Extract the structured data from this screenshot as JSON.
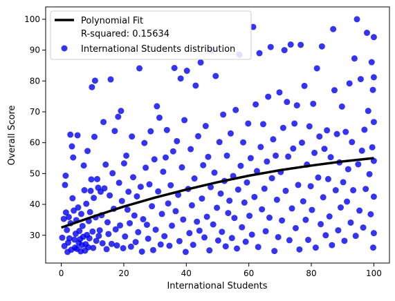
{
  "chart_data": {
    "type": "scatter",
    "xlabel": "International Students",
    "ylabel": "Overall Score",
    "xlim": [
      -5,
      105
    ],
    "ylim": [
      21,
      104
    ],
    "xticks": [
      0,
      20,
      40,
      60,
      80,
      100
    ],
    "yticks": [
      30,
      40,
      50,
      60,
      70,
      80,
      90,
      100
    ],
    "grid": false,
    "legend_position": "top-left",
    "legend": {
      "fit_label": "Polynomial Fit",
      "r2_label": "R-squared: 0.15634",
      "scatter_label": "International Students distribution"
    },
    "colors": {
      "scatter": "#0000ee",
      "fit": "#000000"
    },
    "fit": {
      "name": "Polynomial Fit",
      "x": [
        0,
        10,
        20,
        30,
        40,
        50,
        60,
        70,
        80,
        90,
        100
      ],
      "y": [
        32.5,
        36.0,
        39.3,
        42.2,
        44.8,
        47.2,
        49.3,
        51.1,
        52.6,
        53.9,
        55.0
      ]
    },
    "series": [
      {
        "name": "International Students distribution",
        "points": [
          [
            0.3,
            29.2
          ],
          [
            0.8,
            35.3
          ],
          [
            1.0,
            26.5
          ],
          [
            1.2,
            46.3
          ],
          [
            1.4,
            49.3
          ],
          [
            1.5,
            37.4
          ],
          [
            1.8,
            31.7
          ],
          [
            2.0,
            24.6
          ],
          [
            2.2,
            27.6
          ],
          [
            2.4,
            35.9
          ],
          [
            2.6,
            29.0
          ],
          [
            2.9,
            62.6
          ],
          [
            3.0,
            33.9
          ],
          [
            3.2,
            25.3
          ],
          [
            3.4,
            58.8
          ],
          [
            3.6,
            42.0
          ],
          [
            3.8,
            55.2
          ],
          [
            4.0,
            38.0
          ],
          [
            4.2,
            28.6
          ],
          [
            4.4,
            26.0
          ],
          [
            4.6,
            30.5
          ],
          [
            4.8,
            34.9
          ],
          [
            5.0,
            25.6
          ],
          [
            5.2,
            62.4
          ],
          [
            5.4,
            39.0
          ],
          [
            5.6,
            27.5
          ],
          [
            5.8,
            31.4
          ],
          [
            6.0,
            28.7
          ],
          [
            6.2,
            24.8
          ],
          [
            6.4,
            36.9
          ],
          [
            6.6,
            26.8
          ],
          [
            6.8,
            33.0
          ],
          [
            7.0,
            29.5
          ],
          [
            7.2,
            52.6
          ],
          [
            7.4,
            44.6
          ],
          [
            7.6,
            25.0
          ],
          [
            7.8,
            27.1
          ],
          [
            8.0,
            40.2
          ],
          [
            8.2,
            30.1
          ],
          [
            8.4,
            57.3
          ],
          [
            8.6,
            26.1
          ],
          [
            8.8,
            34.6
          ],
          [
            9.0,
            29.0
          ],
          [
            9.2,
            37.5
          ],
          [
            9.4,
            44.4
          ],
          [
            9.6,
            48.1
          ],
          [
            9.8,
            78.0
          ],
          [
            10.0,
            31.2
          ],
          [
            10.2,
            25.9
          ],
          [
            10.4,
            42.1
          ],
          [
            10.6,
            61.9
          ],
          [
            10.8,
            80.1
          ],
          [
            11.0,
            35.8
          ],
          [
            11.2,
            28.2
          ],
          [
            11.5,
            48.2
          ],
          [
            11.8,
            45.4
          ],
          [
            12.0,
            29.8
          ],
          [
            12.3,
            31.6
          ],
          [
            12.6,
            44.1
          ],
          [
            12.9,
            36.5
          ],
          [
            13.2,
            27.4
          ],
          [
            13.5,
            66.7
          ],
          [
            13.8,
            45.2
          ],
          [
            14.2,
            52.9
          ],
          [
            14.5,
            25.5
          ],
          [
            14.8,
            34.2
          ],
          [
            15.1,
            30.4
          ],
          [
            15.5,
            42.9
          ],
          [
            15.8,
            80.5
          ],
          [
            16.1,
            27.2
          ],
          [
            16.4,
            50.1
          ],
          [
            16.8,
            38.6
          ],
          [
            17.1,
            63.8
          ],
          [
            17.4,
            31.9
          ],
          [
            17.8,
            26.7
          ],
          [
            18.2,
            68.4
          ],
          [
            18.5,
            47.0
          ],
          [
            18.8,
            33.2
          ],
          [
            19.1,
            70.3
          ],
          [
            19.4,
            41.1
          ],
          [
            19.8,
            25.8
          ],
          [
            20.1,
            53.3
          ],
          [
            20.4,
            29.6
          ],
          [
            20.8,
            55.8
          ],
          [
            21.2,
            38.3
          ],
          [
            21.5,
            44.1
          ],
          [
            21.9,
            33.9
          ],
          [
            22.3,
            26.3
          ],
          [
            22.6,
            62.0
          ],
          [
            23.0,
            48.8
          ],
          [
            23.4,
            36.4
          ],
          [
            23.8,
            27.8
          ],
          [
            24.2,
            42.6
          ],
          [
            24.6,
            31.0
          ],
          [
            25.0,
            84.1
          ],
          [
            25.4,
            45.7
          ],
          [
            25.8,
            24.7
          ],
          [
            26.2,
            35.2
          ],
          [
            26.6,
            59.9
          ],
          [
            27.0,
            51.9
          ],
          [
            27.4,
            33.4
          ],
          [
            27.8,
            28.9
          ],
          [
            28.2,
            46.5
          ],
          [
            28.6,
            63.7
          ],
          [
            29.0,
            39.4
          ],
          [
            29.4,
            25.2
          ],
          [
            29.8,
            54.6
          ],
          [
            30.2,
            31.8
          ],
          [
            30.6,
            71.8
          ],
          [
            31.0,
            44.2
          ],
          [
            31.4,
            68.1
          ],
          [
            31.8,
            27.0
          ],
          [
            32.2,
            36.9
          ],
          [
            32.6,
            50.6
          ],
          [
            33.0,
            29.7
          ],
          [
            33.4,
            55.2
          ],
          [
            33.8,
            64.1
          ],
          [
            34.2,
            40.3
          ],
          [
            34.6,
            26.6
          ],
          [
            35.0,
            46.2
          ],
          [
            35.4,
            33.1
          ],
          [
            35.8,
            57.2
          ],
          [
            36.2,
            84.2
          ],
          [
            36.6,
            37.8
          ],
          [
            37.0,
            60.5
          ],
          [
            37.4,
            43.1
          ],
          [
            37.8,
            28.1
          ],
          [
            38.2,
            80.8
          ],
          [
            38.6,
            52.0
          ],
          [
            39.0,
            35.1
          ],
          [
            39.4,
            67.3
          ],
          [
            39.8,
            24.6
          ],
          [
            40.2,
            83.3
          ],
          [
            40.6,
            45.0
          ],
          [
            41.0,
            30.7
          ],
          [
            41.4,
            57.9
          ],
          [
            41.8,
            39.7
          ],
          [
            42.2,
            26.9
          ],
          [
            42.6,
            48.4
          ],
          [
            43.0,
            78.5
          ],
          [
            43.4,
            34.4
          ],
          [
            43.8,
            62.1
          ],
          [
            44.2,
            31.5
          ],
          [
            44.6,
            86.0
          ],
          [
            45.0,
            41.9
          ],
          [
            45.4,
            52.7
          ],
          [
            45.8,
            29.3
          ],
          [
            46.2,
            65.4
          ],
          [
            46.6,
            36.0
          ],
          [
            47.0,
            55.4
          ],
          [
            47.4,
            25.1
          ],
          [
            47.8,
            45.6
          ],
          [
            48.2,
            89.9
          ],
          [
            48.6,
            33.5
          ],
          [
            49.0,
            50.3
          ],
          [
            49.4,
            81.6
          ],
          [
            49.8,
            38.9
          ],
          [
            50.2,
            28.3
          ],
          [
            50.6,
            60.2
          ],
          [
            51.0,
            43.5
          ],
          [
            51.4,
            31.1
          ],
          [
            51.8,
            69.1
          ],
          [
            52.2,
            47.6
          ],
          [
            52.6,
            26.4
          ],
          [
            53.0,
            55.8
          ],
          [
            53.4,
            37.2
          ],
          [
            53.8,
            41.2
          ],
          [
            54.2,
            63.0
          ],
          [
            54.6,
            29.1
          ],
          [
            55.0,
            49.2
          ],
          [
            55.4,
            35.6
          ],
          [
            55.8,
            70.6
          ],
          [
            56.2,
            25.7
          ],
          [
            56.6,
            44.8
          ],
          [
            57.0,
            88.5
          ],
          [
            57.4,
            52.5
          ],
          [
            57.8,
            32.6
          ],
          [
            58.2,
            60.1
          ],
          [
            58.6,
            40.6
          ],
          [
            59.0,
            27.9
          ],
          [
            59.4,
            47.1
          ],
          [
            59.8,
            66.2
          ],
          [
            60.2,
            36.3
          ],
          [
            60.6,
            55.0
          ],
          [
            61.0,
            30.2
          ],
          [
            61.4,
            97.5
          ],
          [
            61.8,
            42.4
          ],
          [
            62.2,
            72.4
          ],
          [
            62.6,
            50.8
          ],
          [
            63.0,
            26.2
          ],
          [
            63.4,
            89.0
          ],
          [
            63.8,
            58.6
          ],
          [
            64.2,
            38.4
          ],
          [
            64.6,
            66.0
          ],
          [
            65.0,
            45.1
          ],
          [
            65.4,
            31.3
          ],
          [
            65.8,
            53.9
          ],
          [
            66.2,
            74.9
          ],
          [
            66.6,
            35.7
          ],
          [
            67.0,
            91.0
          ],
          [
            67.4,
            48.5
          ],
          [
            67.8,
            61.1
          ],
          [
            68.2,
            24.9
          ],
          [
            68.6,
            55.8
          ],
          [
            69.0,
            41.5
          ],
          [
            69.4,
            29.4
          ],
          [
            69.8,
            76.3
          ],
          [
            70.2,
            50.5
          ],
          [
            70.6,
            34.8
          ],
          [
            71.0,
            64.8
          ],
          [
            71.4,
            90.0
          ],
          [
            71.8,
            44.4
          ],
          [
            72.2,
            73.2
          ],
          [
            72.6,
            55.5
          ],
          [
            73.0,
            28.4
          ],
          [
            73.4,
            91.8
          ],
          [
            73.8,
            38.7
          ],
          [
            74.2,
            58.1
          ],
          [
            74.6,
            66.2
          ],
          [
            75.0,
            32.3
          ],
          [
            75.4,
            72.1
          ],
          [
            75.8,
            46.3
          ],
          [
            76.2,
            25.4
          ],
          [
            76.6,
            91.7
          ],
          [
            77.0,
            60.0
          ],
          [
            77.4,
            41.0
          ],
          [
            77.8,
            78.4
          ],
          [
            78.2,
            35.0
          ],
          [
            78.6,
            52.9
          ],
          [
            79.0,
            28.5
          ],
          [
            79.4,
            65.3
          ],
          [
            79.8,
            45.9
          ],
          [
            80.2,
            38.2
          ],
          [
            80.6,
            72.6
          ],
          [
            81.0,
            56.7
          ],
          [
            81.4,
            26.0
          ],
          [
            81.8,
            84.1
          ],
          [
            82.2,
            48.7
          ],
          [
            82.6,
            62.0
          ],
          [
            83.0,
            33.6
          ],
          [
            83.4,
            91.2
          ],
          [
            83.8,
            42.3
          ],
          [
            84.2,
            58.0
          ],
          [
            84.6,
            30.0
          ],
          [
            85.0,
            64.0
          ],
          [
            85.4,
            48.2
          ],
          [
            85.8,
            36.1
          ],
          [
            86.2,
            55.3
          ],
          [
            86.6,
            26.8
          ],
          [
            87.0,
            96.8
          ],
          [
            87.4,
            77.0
          ],
          [
            87.8,
            44.6
          ],
          [
            88.2,
            62.8
          ],
          [
            88.6,
            31.6
          ],
          [
            89.0,
            53.6
          ],
          [
            89.4,
            39.0
          ],
          [
            89.8,
            71.7
          ],
          [
            90.2,
            47.2
          ],
          [
            90.6,
            28.2
          ],
          [
            91.0,
            63.5
          ],
          [
            91.4,
            40.9
          ],
          [
            91.8,
            51.4
          ],
          [
            92.2,
            79.2
          ],
          [
            92.6,
            34.1
          ],
          [
            93.0,
            60.2
          ],
          [
            93.4,
            44.6
          ],
          [
            93.8,
            87.3
          ],
          [
            94.2,
            29.8
          ],
          [
            94.6,
            100.0
          ],
          [
            95.0,
            53.0
          ],
          [
            95.4,
            38.0
          ],
          [
            95.8,
            80.6
          ],
          [
            96.2,
            57.4
          ],
          [
            96.6,
            32.5
          ],
          [
            97.0,
            64.2
          ],
          [
            97.4,
            45.0
          ],
          [
            97.8,
            95.6
          ],
          [
            98.2,
            70.3
          ],
          [
            98.6,
            49.8
          ],
          [
            99.0,
            36.8
          ],
          [
            99.3,
            86.1
          ],
          [
            99.5,
            58.5
          ],
          [
            99.7,
            77.1
          ],
          [
            99.8,
            26.0
          ],
          [
            100.0,
            94.2
          ],
          [
            100.0,
            66.7
          ],
          [
            100.0,
            42.5
          ],
          [
            100.0,
            30.7
          ],
          [
            100.0,
            81.2
          ],
          [
            100.0,
            54.1
          ]
        ]
      }
    ]
  }
}
